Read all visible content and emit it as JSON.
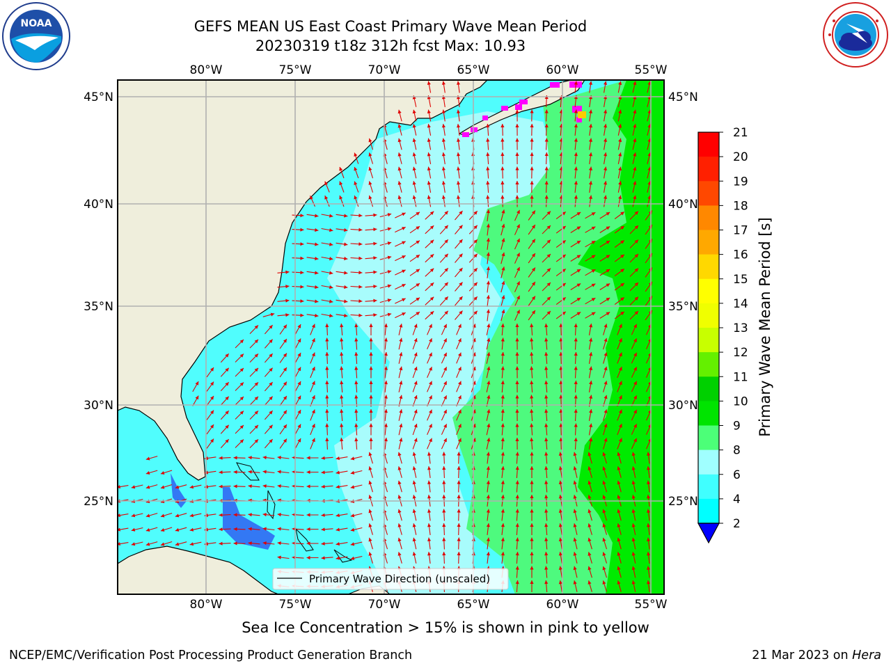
{
  "header": {
    "title": "GEFS MEAN US East Coast Primary Wave Mean Period",
    "subtitle": "20230319 t18z 312h fcst   Max: 10.93"
  },
  "logos": {
    "left": {
      "icon": "noaa-logo",
      "text": "NOAA",
      "ring_text": "NATIONAL OCEANIC AND ATMOSPHERIC ADMINISTRATION · U.S. DEPARTMENT OF COMMERCE"
    },
    "right": {
      "icon": "nws-logo",
      "ring_text": "NATIONAL WEATHER SERVICE"
    }
  },
  "map": {
    "lon_ticks": [
      "80°W",
      "75°W",
      "70°W",
      "65°W",
      "60°W",
      "55°W"
    ],
    "lat_ticks": [
      "45°N",
      "40°N",
      "35°N",
      "30°N",
      "25°N"
    ],
    "colors": {
      "land": "#efeedc",
      "ocean_cyan": "#50fdfd",
      "ocean_light": "#a8fcfc",
      "green_light": "#4efa7e",
      "green": "#00eb00",
      "blue": "#3378f4",
      "arrow": "#e00000",
      "ice": "#ff00ff",
      "grid": "#b0b0b0"
    },
    "legend_label": "Primary Wave Direction (unscaled)"
  },
  "colorbar": {
    "label": "Primary Wave Mean Period [s]",
    "ticks": [
      "21",
      "20",
      "19",
      "18",
      "17",
      "16",
      "15",
      "14",
      "13",
      "12",
      "11",
      "10",
      "9",
      "8",
      "6",
      "4",
      "2"
    ],
    "bands": [
      "#0000ff",
      "#0078ff",
      "#00ffff",
      "#40ffff",
      "#a0ffff",
      "#4cff78",
      "#00e400",
      "#00d000",
      "#64f000",
      "#c8ff00",
      "#f0ff00",
      "#ffff00",
      "#ffd800",
      "#ffa800",
      "#ff8800",
      "#ff4800",
      "#ff2000",
      "#ff0000"
    ]
  },
  "notes": {
    "sea_ice": "Sea Ice Concentration > 15% is shown in pink to yellow"
  },
  "footer": {
    "left": "NCEP/EMC/Verification Post Processing Product Generation Branch",
    "date": "21 Mar 2023 on",
    "machine": "Hera"
  }
}
